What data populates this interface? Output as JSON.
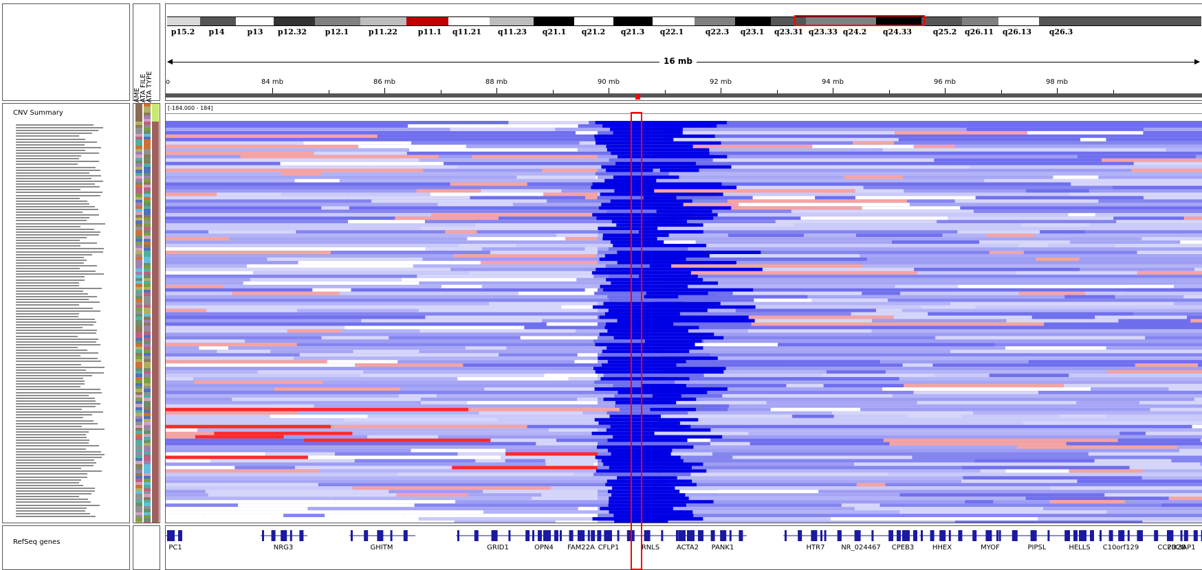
{
  "ideogram": {
    "bands": [
      {
        "name": "p15.2",
        "color": "#d9d9d9"
      },
      {
        "name": "p14",
        "color": "#555555"
      },
      {
        "name": "p13",
        "color": "#ffffff"
      },
      {
        "name": "p12.32",
        "color": "#333333"
      },
      {
        "name": "p12.1",
        "color": "#808080"
      },
      {
        "name": "p11.22",
        "color": "#bdbdbd"
      },
      {
        "name": "p11.1",
        "color": "#c00000"
      },
      {
        "name": "q11.21",
        "color": "#ffffff"
      },
      {
        "name": "q11.23",
        "color": "#bdbdbd"
      },
      {
        "name": "q21.1",
        "color": "#000000"
      },
      {
        "name": "q21.2",
        "color": "#ffffff"
      },
      {
        "name": "q21.3",
        "color": "#000000"
      },
      {
        "name": "q22.1",
        "color": "#ffffff"
      },
      {
        "name": "q22.3",
        "color": "#808080"
      },
      {
        "name": "q23.1",
        "color": "#000000"
      },
      {
        "name": "q23.31",
        "color": "#555555"
      },
      {
        "name": "q23.33",
        "color": "#808080"
      },
      {
        "name": "q24.2",
        "color": "#808080"
      },
      {
        "name": "q24.33",
        "color": "#000000"
      },
      {
        "name": "q25.2",
        "color": "#555555"
      },
      {
        "name": "q26.11",
        "color": "#808080"
      },
      {
        "name": "q26.13",
        "color": "#ffffff"
      },
      {
        "name": "q26.3",
        "color": "#555555"
      }
    ],
    "highlight_color": "#ff0000"
  },
  "ruler": {
    "span_label": "16 mb",
    "ticks": [
      "84 mb",
      "86 mb",
      "88 mb",
      "90 mb",
      "92 mb",
      "94 mb",
      "96 mb",
      "98 mb"
    ]
  },
  "attribute_headers": [
    "NAME",
    "DATA FILE",
    "DATA TYPE"
  ],
  "tracks": {
    "cnv_name": "CNV Summary",
    "cnv_range": "[-184.000 - 184]",
    "refseq_name": "RefSeq genes"
  },
  "genes": [
    "PC1",
    "NRG3",
    "GHITM",
    "GRID1",
    "OPN4",
    "FAM22A",
    "CFLP1",
    "RNLS",
    "ACTA2",
    "PANK1",
    "HTR7",
    "NR_024467",
    "CPEB3",
    "HHEX",
    "MYOF",
    "PIPSL",
    "HELLS",
    "C10orf129",
    "CC2D2B",
    "PIK3AP1"
  ],
  "colors": {
    "loss_strong": "#0000e6",
    "loss_mid": "#6f6fee",
    "loss_light": "#b3b3f7",
    "gain_strong": "#ff2a2a",
    "gain_light": "#f5a3a3",
    "neutral": "#ffffff",
    "region_box": "#ff0000"
  }
}
